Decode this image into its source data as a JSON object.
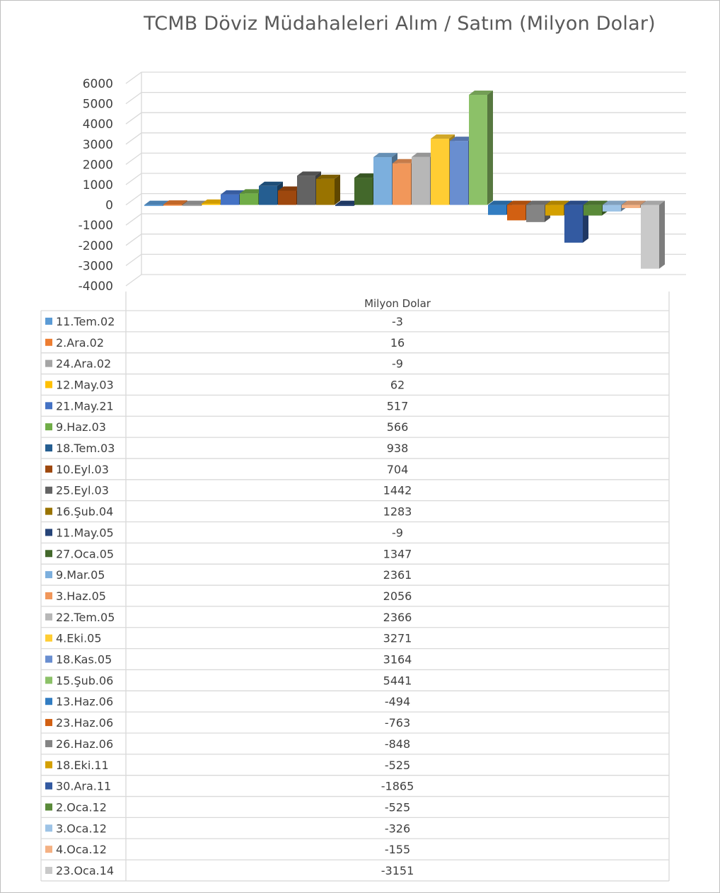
{
  "chart_data": {
    "type": "bar",
    "title": "TCMB Döviz Müdahaleleri Alım / Satım (Milyon Dolar)",
    "category": "Milyon Dolar",
    "ylim": [
      -4000,
      6000
    ],
    "yticks": [
      6000,
      5000,
      4000,
      3000,
      2000,
      1000,
      0,
      -1000,
      -2000,
      -3000,
      -4000
    ],
    "grid": true,
    "legend": "data-table-below",
    "series": [
      {
        "name": "11.Tem.02",
        "value": -3,
        "color": "#5b9bd5"
      },
      {
        "name": "2.Ara.02",
        "value": 16,
        "color": "#ed7d31"
      },
      {
        "name": "24.Ara.02",
        "value": -9,
        "color": "#a5a5a5"
      },
      {
        "name": "12.May.03",
        "value": 62,
        "color": "#ffc000"
      },
      {
        "name": "21.May.21",
        "value": 517,
        "color": "#4472c4"
      },
      {
        "name": "9.Haz.03",
        "value": 566,
        "color": "#70ad47"
      },
      {
        "name": "18.Tem.03",
        "value": 938,
        "color": "#255e91"
      },
      {
        "name": "10.Eyl.03",
        "value": 704,
        "color": "#9e480e"
      },
      {
        "name": "25.Eyl.03",
        "value": 1442,
        "color": "#636363"
      },
      {
        "name": "16.Şub.04",
        "value": 1283,
        "color": "#997300"
      },
      {
        "name": "11.May.05",
        "value": -9,
        "color": "#264478"
      },
      {
        "name": "27.Oca.05",
        "value": 1347,
        "color": "#43682b"
      },
      {
        "name": "9.Mar.05",
        "value": 2361,
        "color": "#7cafdd"
      },
      {
        "name": "3.Haz.05",
        "value": 2056,
        "color": "#f1975a"
      },
      {
        "name": "22.Tem.05",
        "value": 2366,
        "color": "#b7b7b7"
      },
      {
        "name": "4.Eki.05",
        "value": 3271,
        "color": "#ffcd33"
      },
      {
        "name": "18.Kas.05",
        "value": 3164,
        "color": "#698ed0"
      },
      {
        "name": "15.Şub.06",
        "value": 5441,
        "color": "#8cc168"
      },
      {
        "name": "13.Haz.06",
        "value": -494,
        "color": "#327dc2"
      },
      {
        "name": "23.Haz.06",
        "value": -763,
        "color": "#d26012"
      },
      {
        "name": "26.Haz.06",
        "value": -848,
        "color": "#848484"
      },
      {
        "name": "18.Eki.11",
        "value": -525,
        "color": "#d4a000"
      },
      {
        "name": "30.Ara.11",
        "value": -1865,
        "color": "#335aa1"
      },
      {
        "name": "2.Oca.12",
        "value": -525,
        "color": "#5a8a39"
      },
      {
        "name": "3.Oca.12",
        "value": -326,
        "color": "#9dc3e6"
      },
      {
        "name": "4.Oca.12",
        "value": -155,
        "color": "#f4b183"
      },
      {
        "name": "23.Oca.14",
        "value": -3151,
        "color": "#c9c9c9"
      }
    ]
  }
}
